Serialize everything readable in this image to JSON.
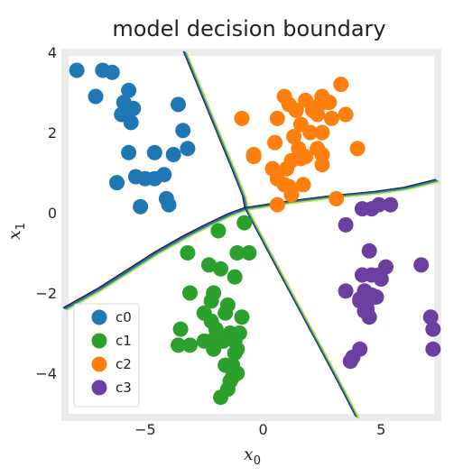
{
  "chart_data": {
    "type": "scatter",
    "title": "model decision boundary",
    "xlabel": {
      "base": "x",
      "sub": "0"
    },
    "ylabel": {
      "base": "x",
      "sub": "1"
    },
    "xlim": [
      -8.4,
      7.4
    ],
    "ylim": [
      -5.1,
      4.0
    ],
    "xticks": [
      -5,
      0,
      5
    ],
    "yticks": [
      4,
      2,
      0,
      -2,
      -4
    ],
    "xtick_labels": [
      "−5",
      "0",
      "5"
    ],
    "ytick_labels": [
      "4",
      "2",
      "0",
      "−2",
      "−4"
    ],
    "grid": false,
    "frame_color": "#ebebeb",
    "legend": {
      "placement": "lower-left"
    },
    "series": [
      {
        "name": "c0",
        "color": "#1f77b4",
        "points": [
          [
            -7.9,
            3.55
          ],
          [
            -6.8,
            3.55
          ],
          [
            -6.4,
            3.5
          ],
          [
            -7.1,
            2.9
          ],
          [
            -5.9,
            2.75
          ],
          [
            -5.7,
            3.05
          ],
          [
            -5.5,
            2.6
          ],
          [
            -6.0,
            2.45
          ],
          [
            -5.6,
            2.25
          ],
          [
            -3.6,
            2.7
          ],
          [
            -3.4,
            2.05
          ],
          [
            -5.7,
            1.5
          ],
          [
            -4.6,
            1.5
          ],
          [
            -3.8,
            1.45
          ],
          [
            -3.2,
            1.6
          ],
          [
            -6.2,
            0.75
          ],
          [
            -5.4,
            0.9
          ],
          [
            -5.0,
            0.85
          ],
          [
            -4.6,
            0.85
          ],
          [
            -4.2,
            0.95
          ],
          [
            -4.1,
            0.35
          ],
          [
            -4.0,
            0.2
          ],
          [
            -5.2,
            0.15
          ]
        ]
      },
      {
        "name": "c1",
        "color": "#2ca02c",
        "points": [
          [
            -0.8,
            -0.25
          ],
          [
            -1.9,
            -0.45
          ],
          [
            -0.6,
            -1.0
          ],
          [
            -1.1,
            -1.0
          ],
          [
            -3.2,
            -1.0
          ],
          [
            -2.3,
            -1.3
          ],
          [
            -1.8,
            -1.4
          ],
          [
            -1.2,
            -1.6
          ],
          [
            -3.1,
            -2.0
          ],
          [
            -2.1,
            -2.0
          ],
          [
            -2.2,
            -2.2
          ],
          [
            -1.5,
            -2.3
          ],
          [
            -2.5,
            -2.5
          ],
          [
            -1.6,
            -2.5
          ],
          [
            -0.9,
            -2.6
          ],
          [
            -2.2,
            -2.7
          ],
          [
            -3.5,
            -2.9
          ],
          [
            -2.0,
            -2.9
          ],
          [
            -1.4,
            -3.0
          ],
          [
            -1.0,
            -3.0
          ],
          [
            -2.5,
            -3.2
          ],
          [
            -2.2,
            -3.2
          ],
          [
            -1.7,
            -3.2
          ],
          [
            -3.1,
            -3.3
          ],
          [
            -3.6,
            -3.3
          ],
          [
            -1.2,
            -3.2
          ],
          [
            -1.1,
            -3.4
          ],
          [
            -1.2,
            -3.5
          ],
          [
            -2.1,
            -3.4
          ],
          [
            -1.3,
            -3.8
          ],
          [
            -1.6,
            -3.8
          ],
          [
            -1.1,
            -4.0
          ],
          [
            -1.3,
            -4.1
          ],
          [
            -1.4,
            -4.2
          ],
          [
            -1.5,
            -4.4
          ],
          [
            -1.8,
            -4.6
          ]
        ]
      },
      {
        "name": "c2",
        "color": "#ff7f0e",
        "points": [
          [
            0.9,
            2.9
          ],
          [
            1.1,
            2.7
          ],
          [
            0.6,
            2.35
          ],
          [
            -0.9,
            2.35
          ],
          [
            1.4,
            2.55
          ],
          [
            1.8,
            2.8
          ],
          [
            2.1,
            2.55
          ],
          [
            2.4,
            2.7
          ],
          [
            2.3,
            2.45
          ],
          [
            2.5,
            2.9
          ],
          [
            2.8,
            2.75
          ],
          [
            3.3,
            3.2
          ],
          [
            1.6,
            2.2
          ],
          [
            2.0,
            2.0
          ],
          [
            2.5,
            2.0
          ],
          [
            1.3,
            1.9
          ],
          [
            2.9,
            2.35
          ],
          [
            3.5,
            2.45
          ],
          [
            0.5,
            1.75
          ],
          [
            1.5,
            1.6
          ],
          [
            2.3,
            1.6
          ],
          [
            2.5,
            1.45
          ],
          [
            1.8,
            1.4
          ],
          [
            1.2,
            1.3
          ],
          [
            1.6,
            1.35
          ],
          [
            0.4,
            1.1
          ],
          [
            -0.4,
            1.45
          ],
          [
            0.6,
            0.85
          ],
          [
            1.0,
            1.1
          ],
          [
            2.5,
            1.2
          ],
          [
            4.0,
            1.6
          ],
          [
            -0.4,
            1.4
          ],
          [
            0.9,
            0.7
          ],
          [
            1.1,
            0.65
          ],
          [
            1.2,
            0.55
          ],
          [
            1.7,
            0.7
          ],
          [
            3.1,
            0.35
          ],
          [
            0.6,
            0.2
          ],
          [
            1.2,
            0.45
          ]
        ]
      },
      {
        "name": "c3",
        "color": "#6b3fa0",
        "points": [
          [
            4.2,
            0.1
          ],
          [
            4.6,
            0.1
          ],
          [
            4.9,
            0.2
          ],
          [
            5.4,
            0.2
          ],
          [
            3.5,
            -0.3
          ],
          [
            4.5,
            -0.95
          ],
          [
            5.2,
            -1.35
          ],
          [
            6.7,
            -1.3
          ],
          [
            4.2,
            -1.55
          ],
          [
            4.6,
            -1.55
          ],
          [
            4.9,
            -1.55
          ],
          [
            5.0,
            -1.65
          ],
          [
            3.5,
            -1.95
          ],
          [
            4.3,
            -1.95
          ],
          [
            4.6,
            -2.05
          ],
          [
            4.8,
            -2.1
          ],
          [
            4.1,
            -2.15
          ],
          [
            4.3,
            -2.3
          ],
          [
            4.4,
            -2.4
          ],
          [
            4.5,
            -2.6
          ],
          [
            4.3,
            -2.45
          ],
          [
            4.1,
            -2.2
          ],
          [
            4.5,
            -2.15
          ],
          [
            7.1,
            -2.6
          ],
          [
            7.2,
            -2.9
          ],
          [
            7.2,
            -3.4
          ],
          [
            4.1,
            -3.4
          ],
          [
            3.8,
            -3.6
          ],
          [
            3.7,
            -3.7
          ]
        ]
      }
    ],
    "boundaries": [
      [
        [
          -3.3,
          4.0
        ],
        [
          -2.6,
          3.0
        ],
        [
          -1.9,
          2.0
        ],
        [
          -1.2,
          1.0
        ],
        [
          -0.8,
          0.4
        ],
        [
          -0.7,
          0.1
        ]
      ],
      [
        [
          -0.7,
          0.1
        ],
        [
          -1.4,
          -0.05
        ],
        [
          -2.3,
          -0.3
        ],
        [
          -3.3,
          -0.6
        ],
        [
          -4.5,
          -1.0
        ],
        [
          -5.7,
          -1.45
        ],
        [
          -6.9,
          -1.9
        ],
        [
          -8.4,
          -2.4
        ]
      ],
      [
        [
          -0.7,
          0.1
        ],
        [
          1.0,
          0.25
        ],
        [
          3.0,
          0.4
        ],
        [
          4.8,
          0.5
        ],
        [
          6.0,
          0.6
        ],
        [
          7.4,
          0.8
        ]
      ],
      [
        [
          -0.7,
          0.1
        ],
        [
          0.2,
          -0.9
        ],
        [
          1.2,
          -2.0
        ],
        [
          2.3,
          -3.2
        ],
        [
          3.3,
          -4.3
        ],
        [
          4.0,
          -5.1
        ]
      ]
    ],
    "boundary_colors": [
      "#2c1b4f",
      "#3b5ba5",
      "#1f9a8a",
      "#b6e04f"
    ]
  }
}
